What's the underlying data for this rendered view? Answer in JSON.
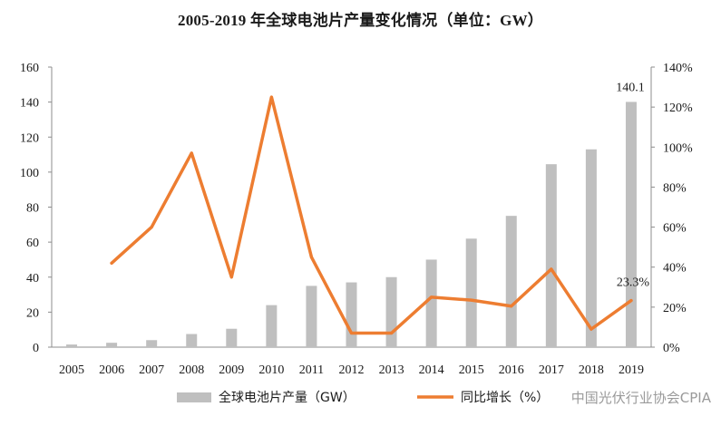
{
  "chart_data": {
    "type": "bar",
    "title": "2005-2019 年全球电池片产量变化情况（单位：GW）",
    "categories": [
      "2005",
      "2006",
      "2007",
      "2008",
      "2009",
      "2010",
      "2011",
      "2012",
      "2013",
      "2014",
      "2015",
      "2016",
      "2017",
      "2018",
      "2019"
    ],
    "series": [
      {
        "name": "全球电池片产量（GW）",
        "type": "bar",
        "axis": "left",
        "color": "#bfbfbf",
        "values": [
          1.5,
          2.5,
          4,
          7.5,
          10.5,
          24,
          35,
          37,
          40,
          50,
          62,
          75,
          104.5,
          113,
          140.1
        ]
      },
      {
        "name": "同比增长（%）",
        "type": "line",
        "axis": "right",
        "color": "#ed7d31",
        "values": [
          null,
          42,
          60,
          97,
          35,
          125,
          45,
          7,
          7,
          25,
          23.5,
          20.5,
          39,
          9,
          23.3
        ]
      }
    ],
    "y_left": {
      "min": 0,
      "max": 160,
      "step": 20,
      "ticks": [
        "0",
        "20",
        "40",
        "60",
        "80",
        "100",
        "120",
        "140",
        "160"
      ]
    },
    "y_right": {
      "min": 0,
      "max": 140,
      "step": 20,
      "ticks": [
        "0%",
        "20%",
        "40%",
        "60%",
        "80%",
        "100%",
        "120%",
        "140%"
      ]
    },
    "data_labels": [
      {
        "series": 0,
        "index": 14,
        "text": "140.1"
      },
      {
        "series": 1,
        "index": 14,
        "text": "23.3%"
      }
    ],
    "legend": {
      "placement": "bottom",
      "items": [
        "全球电池片产量（GW）",
        "同比增长（%）"
      ]
    }
  },
  "watermark": "中国光伏行业协会CPIA"
}
